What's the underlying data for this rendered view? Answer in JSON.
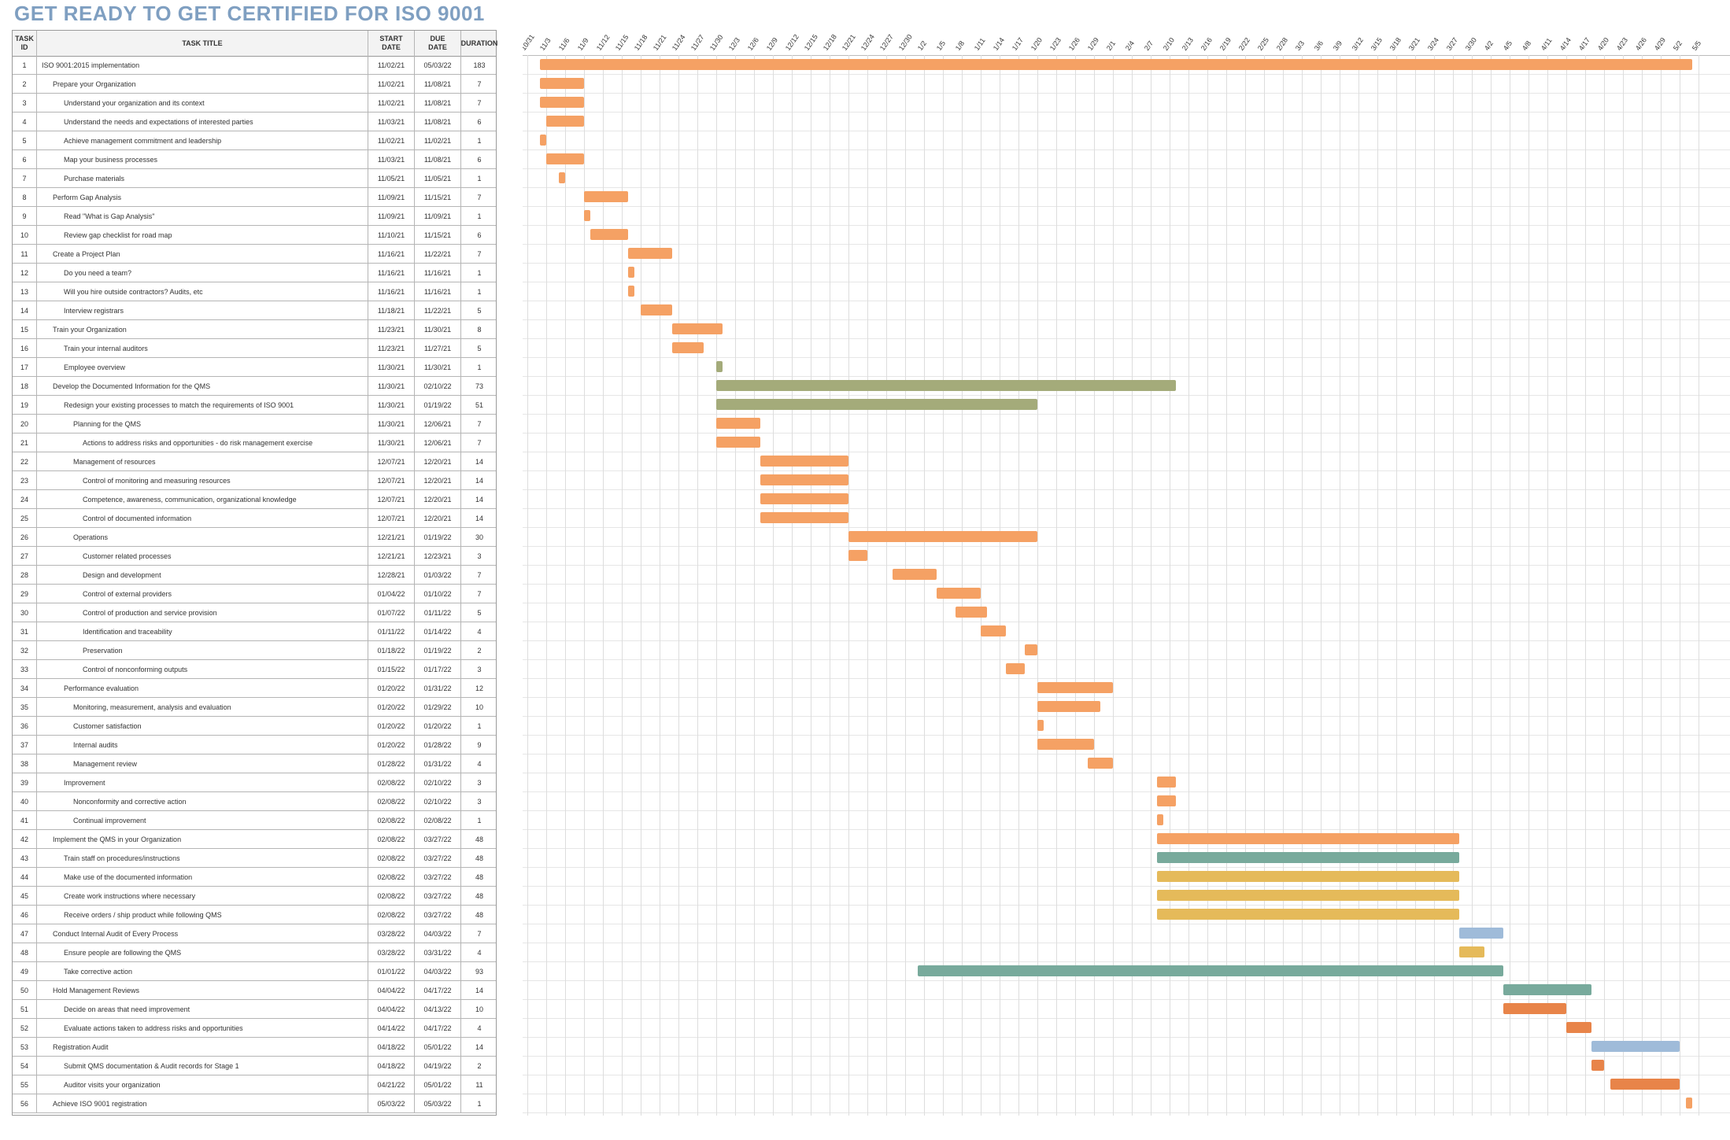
{
  "page": {
    "title": "GET READY TO GET CERTIFIED FOR ISO 9001"
  },
  "headers": {
    "id": "TASK\nID",
    "title": "TASK TITLE",
    "start": "START\nDATE",
    "due": "DUE\nDATE",
    "duration": "DURATION"
  },
  "colors": {
    "orange": "#f5a164",
    "olive": "#a4ab7a",
    "teal": "#78aa9c",
    "gold": "#e5ba5a",
    "blue": "#9fbbd9",
    "dark_orange": "#e88449"
  },
  "timeline": {
    "dates": [
      "10/31",
      "11/3",
      "11/6",
      "11/9",
      "11/12",
      "11/15",
      "11/18",
      "11/21",
      "11/24",
      "11/27",
      "11/30",
      "12/3",
      "12/6",
      "12/9",
      "12/12",
      "12/15",
      "12/18",
      "12/21",
      "12/24",
      "12/27",
      "12/30",
      "1/2",
      "1/5",
      "1/8",
      "1/11",
      "1/14",
      "1/17",
      "1/20",
      "1/23",
      "1/26",
      "1/29",
      "2/1",
      "2/4",
      "2/7",
      "2/10",
      "2/13",
      "2/16",
      "2/19",
      "2/22",
      "2/25",
      "2/28",
      "3/3",
      "3/6",
      "3/9",
      "3/12",
      "3/15",
      "3/18",
      "3/21",
      "3/24",
      "3/27",
      "3/30",
      "4/2",
      "4/5",
      "4/8",
      "4/11",
      "4/14",
      "4/17",
      "4/20",
      "4/23",
      "4/26",
      "4/29",
      "5/2",
      "5/5"
    ],
    "start_day": "2021-10-31"
  },
  "tasks": [
    {
      "id": "1",
      "title": "ISO 9001:2015 implementation",
      "start": "11/02/21",
      "due": "05/03/22",
      "duration": "183",
      "indent": 0,
      "color": "orange"
    },
    {
      "id": "2",
      "title": "Prepare your Organization",
      "start": "11/02/21",
      "due": "11/08/21",
      "duration": "7",
      "indent": 1,
      "color": "orange"
    },
    {
      "id": "3",
      "title": "Understand your organization and its context",
      "start": "11/02/21",
      "due": "11/08/21",
      "duration": "7",
      "indent": 2,
      "color": "orange"
    },
    {
      "id": "4",
      "title": "Understand the needs and expectations of interested parties",
      "start": "11/03/21",
      "due": "11/08/21",
      "duration": "6",
      "indent": 2,
      "color": "orange"
    },
    {
      "id": "5",
      "title": "Achieve management commitment and leadership",
      "start": "11/02/21",
      "due": "11/02/21",
      "duration": "1",
      "indent": 2,
      "color": "orange"
    },
    {
      "id": "6",
      "title": "Map your business processes",
      "start": "11/03/21",
      "due": "11/08/21",
      "duration": "6",
      "indent": 2,
      "color": "orange"
    },
    {
      "id": "7",
      "title": "Purchase materials",
      "start": "11/05/21",
      "due": "11/05/21",
      "duration": "1",
      "indent": 2,
      "color": "orange"
    },
    {
      "id": "8",
      "title": "Perform Gap Analysis",
      "start": "11/09/21",
      "due": "11/15/21",
      "duration": "7",
      "indent": 1,
      "color": "orange"
    },
    {
      "id": "9",
      "title": "Read \"What is Gap Analysis\"",
      "start": "11/09/21",
      "due": "11/09/21",
      "duration": "1",
      "indent": 2,
      "color": "orange"
    },
    {
      "id": "10",
      "title": "Review gap checklist for road map",
      "start": "11/10/21",
      "due": "11/15/21",
      "duration": "6",
      "indent": 2,
      "color": "orange"
    },
    {
      "id": "11",
      "title": "Create a Project Plan",
      "start": "11/16/21",
      "due": "11/22/21",
      "duration": "7",
      "indent": 1,
      "color": "orange"
    },
    {
      "id": "12",
      "title": "Do you need a team?",
      "start": "11/16/21",
      "due": "11/16/21",
      "duration": "1",
      "indent": 2,
      "color": "orange"
    },
    {
      "id": "13",
      "title": "Will you hire outside contractors? Audits, etc",
      "start": "11/16/21",
      "due": "11/16/21",
      "duration": "1",
      "indent": 2,
      "color": "orange"
    },
    {
      "id": "14",
      "title": "Interview registrars",
      "start": "11/18/21",
      "due": "11/22/21",
      "duration": "5",
      "indent": 2,
      "color": "orange"
    },
    {
      "id": "15",
      "title": "Train your Organization",
      "start": "11/23/21",
      "due": "11/30/21",
      "duration": "8",
      "indent": 1,
      "color": "orange"
    },
    {
      "id": "16",
      "title": "Train your internal auditors",
      "start": "11/23/21",
      "due": "11/27/21",
      "duration": "5",
      "indent": 2,
      "color": "orange"
    },
    {
      "id": "17",
      "title": "Employee overview",
      "start": "11/30/21",
      "due": "11/30/21",
      "duration": "1",
      "indent": 2,
      "color": "olive"
    },
    {
      "id": "18",
      "title": "Develop the Documented Information for the QMS",
      "start": "11/30/21",
      "due": "02/10/22",
      "duration": "73",
      "indent": 1,
      "color": "olive"
    },
    {
      "id": "19",
      "title": "Redesign your existing processes to match the requirements of ISO 9001",
      "start": "11/30/21",
      "due": "01/19/22",
      "duration": "51",
      "indent": 2,
      "color": "olive"
    },
    {
      "id": "20",
      "title": "Planning for the QMS",
      "start": "11/30/21",
      "due": "12/06/21",
      "duration": "7",
      "indent": 3,
      "color": "orange"
    },
    {
      "id": "21",
      "title": "Actions to address risks and opportunities - do risk management exercise",
      "start": "11/30/21",
      "due": "12/06/21",
      "duration": "7",
      "indent": 4,
      "color": "orange"
    },
    {
      "id": "22",
      "title": "Management of resources",
      "start": "12/07/21",
      "due": "12/20/21",
      "duration": "14",
      "indent": 3,
      "color": "orange"
    },
    {
      "id": "23",
      "title": "Control of monitoring and measuring resources",
      "start": "12/07/21",
      "due": "12/20/21",
      "duration": "14",
      "indent": 4,
      "color": "orange"
    },
    {
      "id": "24",
      "title": "Competence, awareness, communication, organizational knowledge",
      "start": "12/07/21",
      "due": "12/20/21",
      "duration": "14",
      "indent": 4,
      "color": "orange"
    },
    {
      "id": "25",
      "title": "Control of documented information",
      "start": "12/07/21",
      "due": "12/20/21",
      "duration": "14",
      "indent": 4,
      "color": "orange"
    },
    {
      "id": "26",
      "title": "Operations",
      "start": "12/21/21",
      "due": "01/19/22",
      "duration": "30",
      "indent": 3,
      "color": "orange"
    },
    {
      "id": "27",
      "title": "Customer related processes",
      "start": "12/21/21",
      "due": "12/23/21",
      "duration": "3",
      "indent": 4,
      "color": "orange"
    },
    {
      "id": "28",
      "title": "Design and development",
      "start": "12/28/21",
      "due": "01/03/22",
      "duration": "7",
      "indent": 4,
      "color": "orange"
    },
    {
      "id": "29",
      "title": "Control of external providers",
      "start": "01/04/22",
      "due": "01/10/22",
      "duration": "7",
      "indent": 4,
      "color": "orange"
    },
    {
      "id": "30",
      "title": "Control of production and service provision",
      "start": "01/07/22",
      "due": "01/11/22",
      "duration": "5",
      "indent": 4,
      "color": "orange"
    },
    {
      "id": "31",
      "title": "Identification and traceability",
      "start": "01/11/22",
      "due": "01/14/22",
      "duration": "4",
      "indent": 4,
      "color": "orange"
    },
    {
      "id": "32",
      "title": "Preservation",
      "start": "01/18/22",
      "due": "01/19/22",
      "duration": "2",
      "indent": 4,
      "color": "orange"
    },
    {
      "id": "33",
      "title": "Control of nonconforming outputs",
      "start": "01/15/22",
      "due": "01/17/22",
      "duration": "3",
      "indent": 4,
      "color": "orange"
    },
    {
      "id": "34",
      "title": "Performance evaluation",
      "start": "01/20/22",
      "due": "01/31/22",
      "duration": "12",
      "indent": 2,
      "color": "orange"
    },
    {
      "id": "35",
      "title": "Monitoring, measurement, analysis and evaluation",
      "start": "01/20/22",
      "due": "01/29/22",
      "duration": "10",
      "indent": 3,
      "color": "orange"
    },
    {
      "id": "36",
      "title": "Customer satisfaction",
      "start": "01/20/22",
      "due": "01/20/22",
      "duration": "1",
      "indent": 3,
      "color": "orange"
    },
    {
      "id": "37",
      "title": "Internal audits",
      "start": "01/20/22",
      "due": "01/28/22",
      "duration": "9",
      "indent": 3,
      "color": "orange"
    },
    {
      "id": "38",
      "title": "Management review",
      "start": "01/28/22",
      "due": "01/31/22",
      "duration": "4",
      "indent": 3,
      "color": "orange"
    },
    {
      "id": "39",
      "title": "Improvement",
      "start": "02/08/22",
      "due": "02/10/22",
      "duration": "3",
      "indent": 2,
      "color": "orange"
    },
    {
      "id": "40",
      "title": "Nonconformity and corrective action",
      "start": "02/08/22",
      "due": "02/10/22",
      "duration": "3",
      "indent": 3,
      "color": "orange"
    },
    {
      "id": "41",
      "title": "Continual improvement",
      "start": "02/08/22",
      "due": "02/08/22",
      "duration": "1",
      "indent": 3,
      "color": "orange"
    },
    {
      "id": "42",
      "title": "Implement the QMS in your Organization",
      "start": "02/08/22",
      "due": "03/27/22",
      "duration": "48",
      "indent": 1,
      "color": "orange"
    },
    {
      "id": "43",
      "title": "Train staff on procedures/instructions",
      "start": "02/08/22",
      "due": "03/27/22",
      "duration": "48",
      "indent": 2,
      "color": "teal"
    },
    {
      "id": "44",
      "title": "Make use of the documented information",
      "start": "02/08/22",
      "due": "03/27/22",
      "duration": "48",
      "indent": 2,
      "color": "gold"
    },
    {
      "id": "45",
      "title": "Create work instructions where necessary",
      "start": "02/08/22",
      "due": "03/27/22",
      "duration": "48",
      "indent": 2,
      "color": "gold"
    },
    {
      "id": "46",
      "title": "Receive orders / ship product while following QMS",
      "start": "02/08/22",
      "due": "03/27/22",
      "duration": "48",
      "indent": 2,
      "color": "gold"
    },
    {
      "id": "47",
      "title": "Conduct Internal Audit of Every Process",
      "start": "03/28/22",
      "due": "04/03/22",
      "duration": "7",
      "indent": 1,
      "color": "blue"
    },
    {
      "id": "48",
      "title": "Ensure people are following the QMS",
      "start": "03/28/22",
      "due": "03/31/22",
      "duration": "4",
      "indent": 2,
      "color": "gold"
    },
    {
      "id": "49",
      "title": "Take corrective action",
      "start": "01/01/22",
      "due": "04/03/22",
      "duration": "93",
      "indent": 2,
      "color": "teal"
    },
    {
      "id": "50",
      "title": "Hold Management Reviews",
      "start": "04/04/22",
      "due": "04/17/22",
      "duration": "14",
      "indent": 1,
      "color": "teal"
    },
    {
      "id": "51",
      "title": "Decide on areas that need improvement",
      "start": "04/04/22",
      "due": "04/13/22",
      "duration": "10",
      "indent": 2,
      "color": "dark_orange"
    },
    {
      "id": "52",
      "title": "Evaluate actions taken to address risks and opportunities",
      "start": "04/14/22",
      "due": "04/17/22",
      "duration": "4",
      "indent": 2,
      "color": "dark_orange"
    },
    {
      "id": "53",
      "title": "Registration Audit",
      "start": "04/18/22",
      "due": "05/01/22",
      "duration": "14",
      "indent": 1,
      "color": "blue"
    },
    {
      "id": "54",
      "title": "Submit QMS documentation & Audit records for Stage 1",
      "start": "04/18/22",
      "due": "04/19/22",
      "duration": "2",
      "indent": 2,
      "color": "dark_orange"
    },
    {
      "id": "55",
      "title": "Auditor visits your organization",
      "start": "04/21/22",
      "due": "05/01/22",
      "duration": "11",
      "indent": 2,
      "color": "dark_orange"
    },
    {
      "id": "56",
      "title": "Achieve ISO 9001 registration",
      "start": "05/03/22",
      "due": "05/03/22",
      "duration": "1",
      "indent": 1,
      "color": "orange"
    }
  ]
}
